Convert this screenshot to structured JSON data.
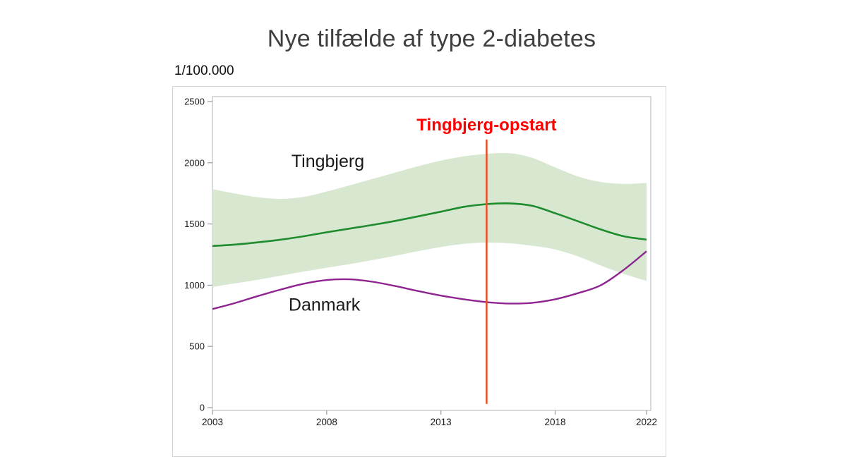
{
  "chart_data": {
    "type": "line",
    "title": "Nye tilfælde af type 2-diabetes",
    "ylabel": "1/100.000",
    "xlabel": "",
    "xlim": [
      2003,
      2022
    ],
    "ylim": [
      0,
      2500
    ],
    "xticks": [
      "2003",
      "2008",
      "2013",
      "2018",
      "2022"
    ],
    "xtick_values": [
      2003,
      2008,
      2013,
      2018,
      2022
    ],
    "yticks": [
      "0",
      "500",
      "1000",
      "1500",
      "2000",
      "2500"
    ],
    "ytick_values": [
      0,
      500,
      1000,
      1500,
      2000,
      2500
    ],
    "grid": false,
    "legend_position": "inline-labels",
    "x": [
      2003,
      2004,
      2005,
      2006,
      2007,
      2008,
      2009,
      2010,
      2011,
      2012,
      2013,
      2014,
      2015,
      2016,
      2017,
      2018,
      2019,
      2020,
      2021,
      2022
    ],
    "series": [
      {
        "name": "Tingbjerg",
        "color": "#1e8c2d",
        "values": [
          1320,
          1332,
          1350,
          1372,
          1400,
          1432,
          1462,
          1492,
          1525,
          1562,
          1600,
          1640,
          1662,
          1668,
          1648,
          1588,
          1522,
          1455,
          1400,
          1372
        ],
        "band": {
          "color": "#d7e7d0",
          "upper": [
            1785,
            1748,
            1718,
            1705,
            1722,
            1765,
            1815,
            1868,
            1920,
            1972,
            2018,
            2052,
            2072,
            2078,
            2040,
            1962,
            1888,
            1843,
            1827,
            1835
          ],
          "lower": [
            985,
            1015,
            1045,
            1078,
            1112,
            1142,
            1172,
            1205,
            1240,
            1278,
            1312,
            1338,
            1348,
            1342,
            1322,
            1292,
            1235,
            1160,
            1092,
            1035
          ]
        },
        "label": {
          "text": "Tingbjerg",
          "x": 2008.05,
          "y": 2015,
          "color": "#1a1a1a"
        }
      },
      {
        "name": "Danmark",
        "color": "#8e2490",
        "values": [
          805,
          855,
          912,
          965,
          1012,
          1042,
          1048,
          1028,
          993,
          952,
          915,
          885,
          862,
          850,
          856,
          885,
          935,
          1000,
          1125,
          1277
        ],
        "label": {
          "text": "Danmark",
          "x": 2007.9,
          "y": 845,
          "color": "#1a1a1a"
        }
      }
    ],
    "annotation": {
      "label": "Tingbjerg-opstart",
      "label_color": "#ff0000",
      "line_color": "#e8512b",
      "x": 2015,
      "y_top": 2190,
      "y_bottom": 30,
      "label_y": 2310
    },
    "style": {
      "frame_color": "#c6cacd",
      "tick_color": "#989ca0",
      "tick_label_color": "#1a1a1a"
    }
  }
}
